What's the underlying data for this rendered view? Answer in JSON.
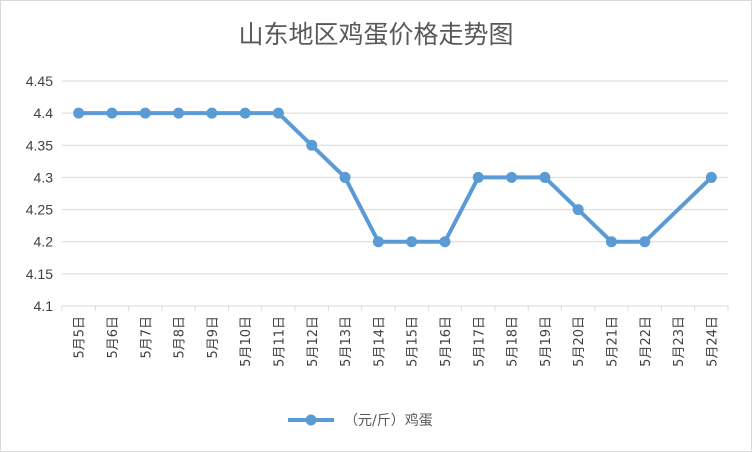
{
  "chart_data": {
    "type": "line",
    "title": "山东地区鸡蛋价格走势图",
    "categories": [
      "5月5日",
      "5月6日",
      "5月7日",
      "5月8日",
      "5月9日",
      "5月10日",
      "5月11日",
      "5月12日",
      "5月13日",
      "5月14日",
      "5月15日",
      "5月16日",
      "5月17日",
      "5月18日",
      "5月19日",
      "5月20日",
      "5月21日",
      "5月22日",
      "5月23日",
      "5月24日"
    ],
    "yticks": [
      "4.1",
      "4.15",
      "4.2",
      "4.25",
      "4.3",
      "4.35",
      "4.4",
      "4.45"
    ],
    "ylim": [
      4.1,
      4.45
    ],
    "series": [
      {
        "name": "（元/斤）鸡蛋",
        "color": "#5b9bd5",
        "values": [
          4.4,
          4.4,
          4.4,
          4.4,
          4.4,
          4.4,
          4.4,
          4.35,
          4.3,
          4.2,
          4.2,
          4.2,
          4.3,
          4.3,
          4.3,
          4.25,
          4.2,
          4.2,
          null,
          4.3
        ]
      }
    ],
    "grid": true,
    "legend_position": "bottom"
  }
}
